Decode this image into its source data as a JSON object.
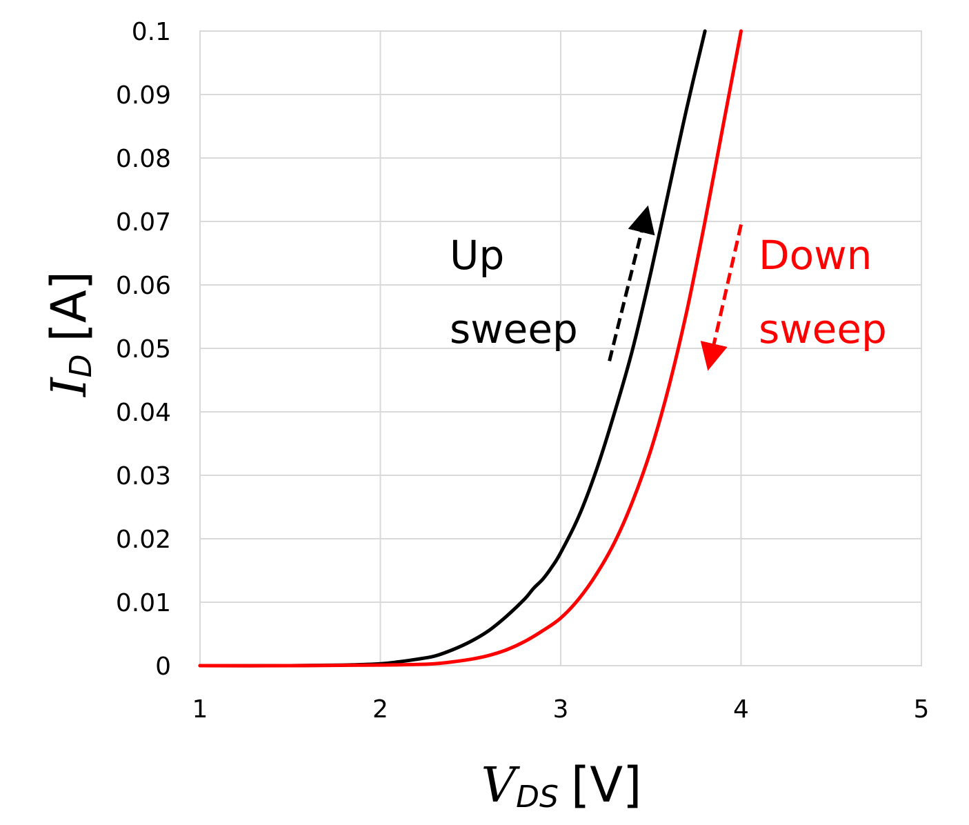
{
  "chart_data": {
    "type": "line",
    "xlabel": {
      "symbol": "V",
      "subscript": "DS",
      "unit": "[V]"
    },
    "ylabel": {
      "symbol": "I",
      "subscript": "D",
      "unit": "[A]"
    },
    "xlim": [
      1,
      5
    ],
    "ylim": [
      0,
      0.1
    ],
    "x_ticks": [
      "1",
      "2",
      "3",
      "4",
      "5"
    ],
    "y_ticks": [
      "0",
      "0.01",
      "0.02",
      "0.03",
      "0.04",
      "0.05",
      "0.06",
      "0.07",
      "0.08",
      "0.09",
      "0.1"
    ],
    "grid": true,
    "series": [
      {
        "color": "#000000",
        "x": [
          1.0,
          1.5,
          1.8,
          2.0,
          2.1,
          2.2,
          2.3,
          2.4,
          2.5,
          2.6,
          2.7,
          2.8,
          2.85,
          2.9,
          2.95,
          3.0,
          3.1,
          3.2,
          3.3,
          3.4,
          3.5,
          3.6,
          3.7,
          3.8
        ],
        "y": [
          0.0,
          0.0,
          0.0001,
          0.0003,
          0.0006,
          0.001,
          0.0015,
          0.0025,
          0.0038,
          0.0055,
          0.0078,
          0.0105,
          0.0122,
          0.0136,
          0.0155,
          0.0178,
          0.0235,
          0.031,
          0.04,
          0.05,
          0.062,
          0.075,
          0.088,
          0.1
        ]
      },
      {
        "color": "#ff0000",
        "x": [
          1.0,
          1.5,
          2.0,
          2.2,
          2.3,
          2.4,
          2.5,
          2.6,
          2.7,
          2.8,
          2.9,
          3.0,
          3.1,
          3.2,
          3.3,
          3.4,
          3.5,
          3.6,
          3.7,
          3.8,
          3.9,
          4.0
        ],
        "y": [
          0.0,
          0.0,
          0.0001,
          0.0002,
          0.0003,
          0.0006,
          0.001,
          0.0016,
          0.0025,
          0.0038,
          0.0055,
          0.0075,
          0.0105,
          0.0145,
          0.0195,
          0.026,
          0.034,
          0.044,
          0.056,
          0.07,
          0.085,
          0.1
        ]
      }
    ],
    "annotations": [
      {
        "lines": [
          "Up",
          "sweep"
        ],
        "color": "#000000"
      },
      {
        "lines": [
          "Down",
          "sweep"
        ],
        "color": "#ff0000"
      }
    ],
    "arrows": [
      {
        "from": [
          3.27,
          0.048
        ],
        "to": [
          3.48,
          0.072
        ],
        "color": "#000000",
        "dashed": true
      },
      {
        "from": [
          4.0,
          0.0695
        ],
        "to": [
          3.82,
          0.047
        ],
        "color": "#ff0000",
        "dashed": true
      }
    ]
  }
}
